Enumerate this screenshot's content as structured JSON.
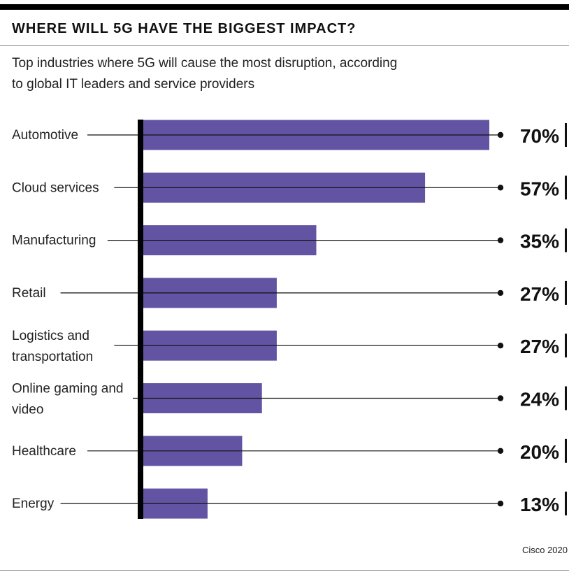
{
  "title": "WHERE WILL 5G HAVE THE BIGGEST IMPACT?",
  "subtitle": "Top industries where 5G will cause the most disruption, according to global IT leaders and service providers",
  "source": "Cisco 2020",
  "chart_data": {
    "type": "bar",
    "orientation": "horizontal",
    "categories": [
      "Automotive",
      "Cloud services",
      "Manufacturing",
      "Retail",
      "Logistics and transportation",
      "Online gaming and video",
      "Healthcare",
      "Energy"
    ],
    "values": [
      70,
      57,
      35,
      27,
      27,
      24,
      20,
      13
    ],
    "value_labels": [
      "70%",
      "57%",
      "35%",
      "27%",
      "27%",
      "24%",
      "20%",
      "13%"
    ],
    "xlim": [
      0,
      70
    ],
    "grid": false,
    "legend": "none",
    "bar_color": "#6354a3",
    "axis_color": "#000000"
  }
}
